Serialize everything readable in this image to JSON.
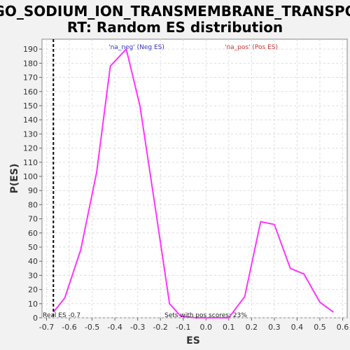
{
  "chart_data": {
    "type": "line",
    "title_lines": [
      "GO_SODIUM_ION_TRANSMEMBRANE_TRANSPO",
      "RT: Random ES distribution"
    ],
    "xlabel": "ES",
    "ylabel": "P(ES)",
    "xlim": [
      -0.72,
      0.62
    ],
    "ylim": [
      0,
      197
    ],
    "x_ticks": [
      -0.7,
      -0.6,
      -0.5,
      -0.4,
      -0.3,
      -0.2,
      -0.1,
      0.0,
      0.1,
      0.2,
      0.3,
      0.4,
      0.5,
      0.6
    ],
    "x_tick_labels": [
      "-0.7",
      "-0.6",
      "-0.5",
      "-0.4",
      "-0.3",
      "-0.2",
      "-0.1",
      "0.0",
      "0.1",
      "0.2",
      "0.3",
      "0.4",
      "0.5",
      "0.6"
    ],
    "y_ticks": [
      0,
      10,
      20,
      30,
      40,
      50,
      60,
      70,
      80,
      90,
      100,
      110,
      120,
      130,
      140,
      150,
      160,
      170,
      180,
      190
    ],
    "y_tick_labels": [
      "0",
      "10",
      "20",
      "30",
      "40",
      "50",
      "60",
      "70",
      "80",
      "90",
      "100",
      "110",
      "120",
      "130",
      "140",
      "150",
      "160",
      "170",
      "180",
      "190"
    ],
    "grid": true,
    "series": [
      {
        "name": "random-es",
        "color": "#ff33ff",
        "x": [
          -0.67,
          -0.62,
          -0.55,
          -0.48,
          -0.42,
          -0.35,
          -0.29,
          -0.22,
          -0.16,
          -0.11,
          -0.04,
          0.03,
          0.1,
          0.17,
          0.24,
          0.3,
          0.37,
          0.43,
          0.5,
          0.56
        ],
        "y": [
          4,
          14,
          48,
          103,
          178,
          190,
          150,
          75,
          10,
          1,
          0,
          0,
          0,
          15,
          68,
          66,
          35,
          31,
          11,
          4
        ]
      }
    ],
    "real_es": {
      "value": -0.67,
      "color": "#000000"
    },
    "legend": {
      "neg_label": "'na_neg' (Neg ES)",
      "pos_label": "'na_pos' (Pos ES)",
      "neg_color": "#3333cc",
      "pos_color": "#cc3333"
    },
    "annotations": {
      "real_es_label": "Real ES -0.7",
      "pos_scores_label": "Sets with pos scores: 23%"
    }
  }
}
